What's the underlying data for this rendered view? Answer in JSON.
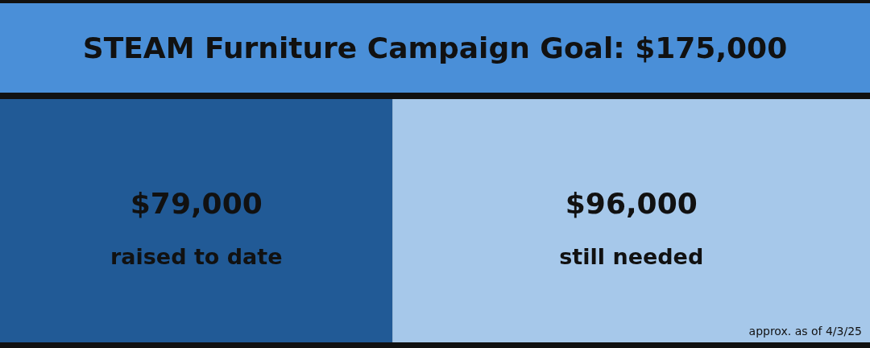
{
  "chart_data": {
    "type": "bar",
    "orientation": "horizontal",
    "stacked": true,
    "title": "STEAM Furniture Campaign Goal: $175,000",
    "categories": [
      null
    ],
    "xlim": [
      0,
      175000
    ],
    "series": [
      {
        "name": "raised to date",
        "color": "#215a96",
        "values": [
          79000
        ],
        "value_labels": [
          "$79,000"
        ]
      },
      {
        "name": "still needed",
        "color": "#a6c8ea",
        "values": [
          96000
        ],
        "value_labels": [
          "$96,000"
        ]
      }
    ],
    "annotations": [
      "approx. as of 4/3/25"
    ]
  }
}
